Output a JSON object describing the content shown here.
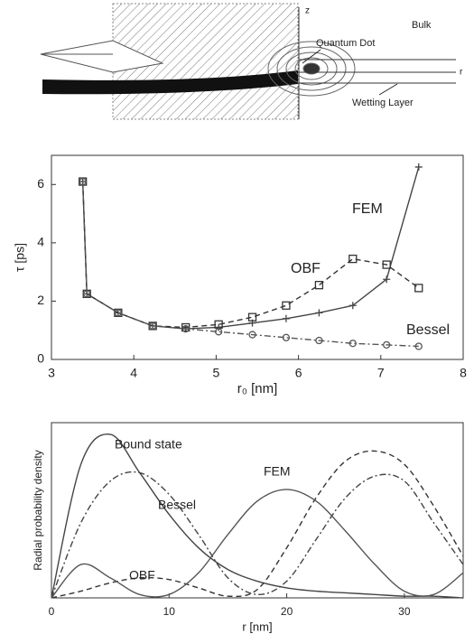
{
  "diagram": {
    "z_label": "z",
    "bulk": "Bulk",
    "dot": "Quantum Dot",
    "r_label": "r",
    "wetting": "Wetting Layer"
  },
  "chart_data": [
    {
      "type": "line",
      "xlabel": "r₀ [nm]",
      "ylabel": "τ [ps]",
      "x": [
        3.38,
        3.43,
        3.81,
        4.23,
        4.63,
        5.03,
        5.44,
        5.85,
        6.25,
        6.66,
        7.07,
        7.46
      ],
      "xlim": [
        3,
        8
      ],
      "xticks": [
        3,
        4,
        5,
        6,
        7,
        8
      ],
      "ylim": [
        0,
        7
      ],
      "yticks": [
        0,
        2,
        4,
        6
      ],
      "smooth": false,
      "series": [
        {
          "name": "FEM",
          "color": "#444444",
          "dash": "solid",
          "marker": "plus",
          "values": [
            6.1,
            2.25,
            1.6,
            1.15,
            1.05,
            1.1,
            1.25,
            1.4,
            1.6,
            1.85,
            2.75,
            6.6
          ]
        },
        {
          "name": "OBF",
          "color": "#333333",
          "dash": "dashed",
          "marker": "square",
          "values": [
            6.1,
            2.25,
            1.6,
            1.15,
            1.1,
            1.2,
            1.45,
            1.85,
            2.55,
            3.45,
            3.25,
            2.45
          ]
        },
        {
          "name": "Bessel",
          "color": "#555555",
          "dash": "dashdot",
          "marker": "circle",
          "values": [
            6.1,
            2.25,
            1.6,
            1.15,
            1.05,
            0.95,
            0.85,
            0.75,
            0.65,
            0.55,
            0.5,
            0.45
          ]
        }
      ]
    },
    {
      "type": "line",
      "xlabel": "r [nm]",
      "ylabel": "Radial probability density",
      "x": [
        0,
        2.5,
        5,
        7.5,
        10,
        12.5,
        15,
        17.5,
        20,
        22.5,
        25,
        27.5,
        30,
        32.5,
        35
      ],
      "xlim": [
        0,
        35
      ],
      "xticks": [
        0,
        10,
        20,
        30
      ],
      "ylim": [
        0,
        1.05
      ],
      "yticks": [],
      "smooth": true,
      "series": [
        {
          "name": "Bound state",
          "color": "#444444",
          "dash": "solid",
          "marker": "none",
          "values": [
            0,
            0.8,
            0.98,
            0.75,
            0.5,
            0.3,
            0.17,
            0.1,
            0.06,
            0.04,
            0.03,
            0.02,
            0.01,
            0.01,
            0
          ]
        },
        {
          "name": "Bessel",
          "color": "#444444",
          "dash": "dashdot",
          "marker": "none",
          "values": [
            0,
            0.45,
            0.7,
            0.75,
            0.62,
            0.38,
            0.12,
            0.02,
            0.1,
            0.35,
            0.6,
            0.73,
            0.7,
            0.45,
            0.2
          ]
        },
        {
          "name": "OBF",
          "color": "#333333",
          "dash": "dashed",
          "marker": "none",
          "values": [
            0,
            0.04,
            0.09,
            0.12,
            0.11,
            0.06,
            0.01,
            0.05,
            0.3,
            0.6,
            0.82,
            0.88,
            0.8,
            0.55,
            0.25
          ]
        },
        {
          "name": "FEM",
          "color": "#555555",
          "dash": "solid",
          "marker": "none",
          "values": [
            0,
            0.2,
            0.12,
            0.02,
            0.02,
            0.15,
            0.38,
            0.58,
            0.65,
            0.58,
            0.4,
            0.2,
            0.04,
            0.02,
            0.15
          ]
        }
      ]
    }
  ]
}
